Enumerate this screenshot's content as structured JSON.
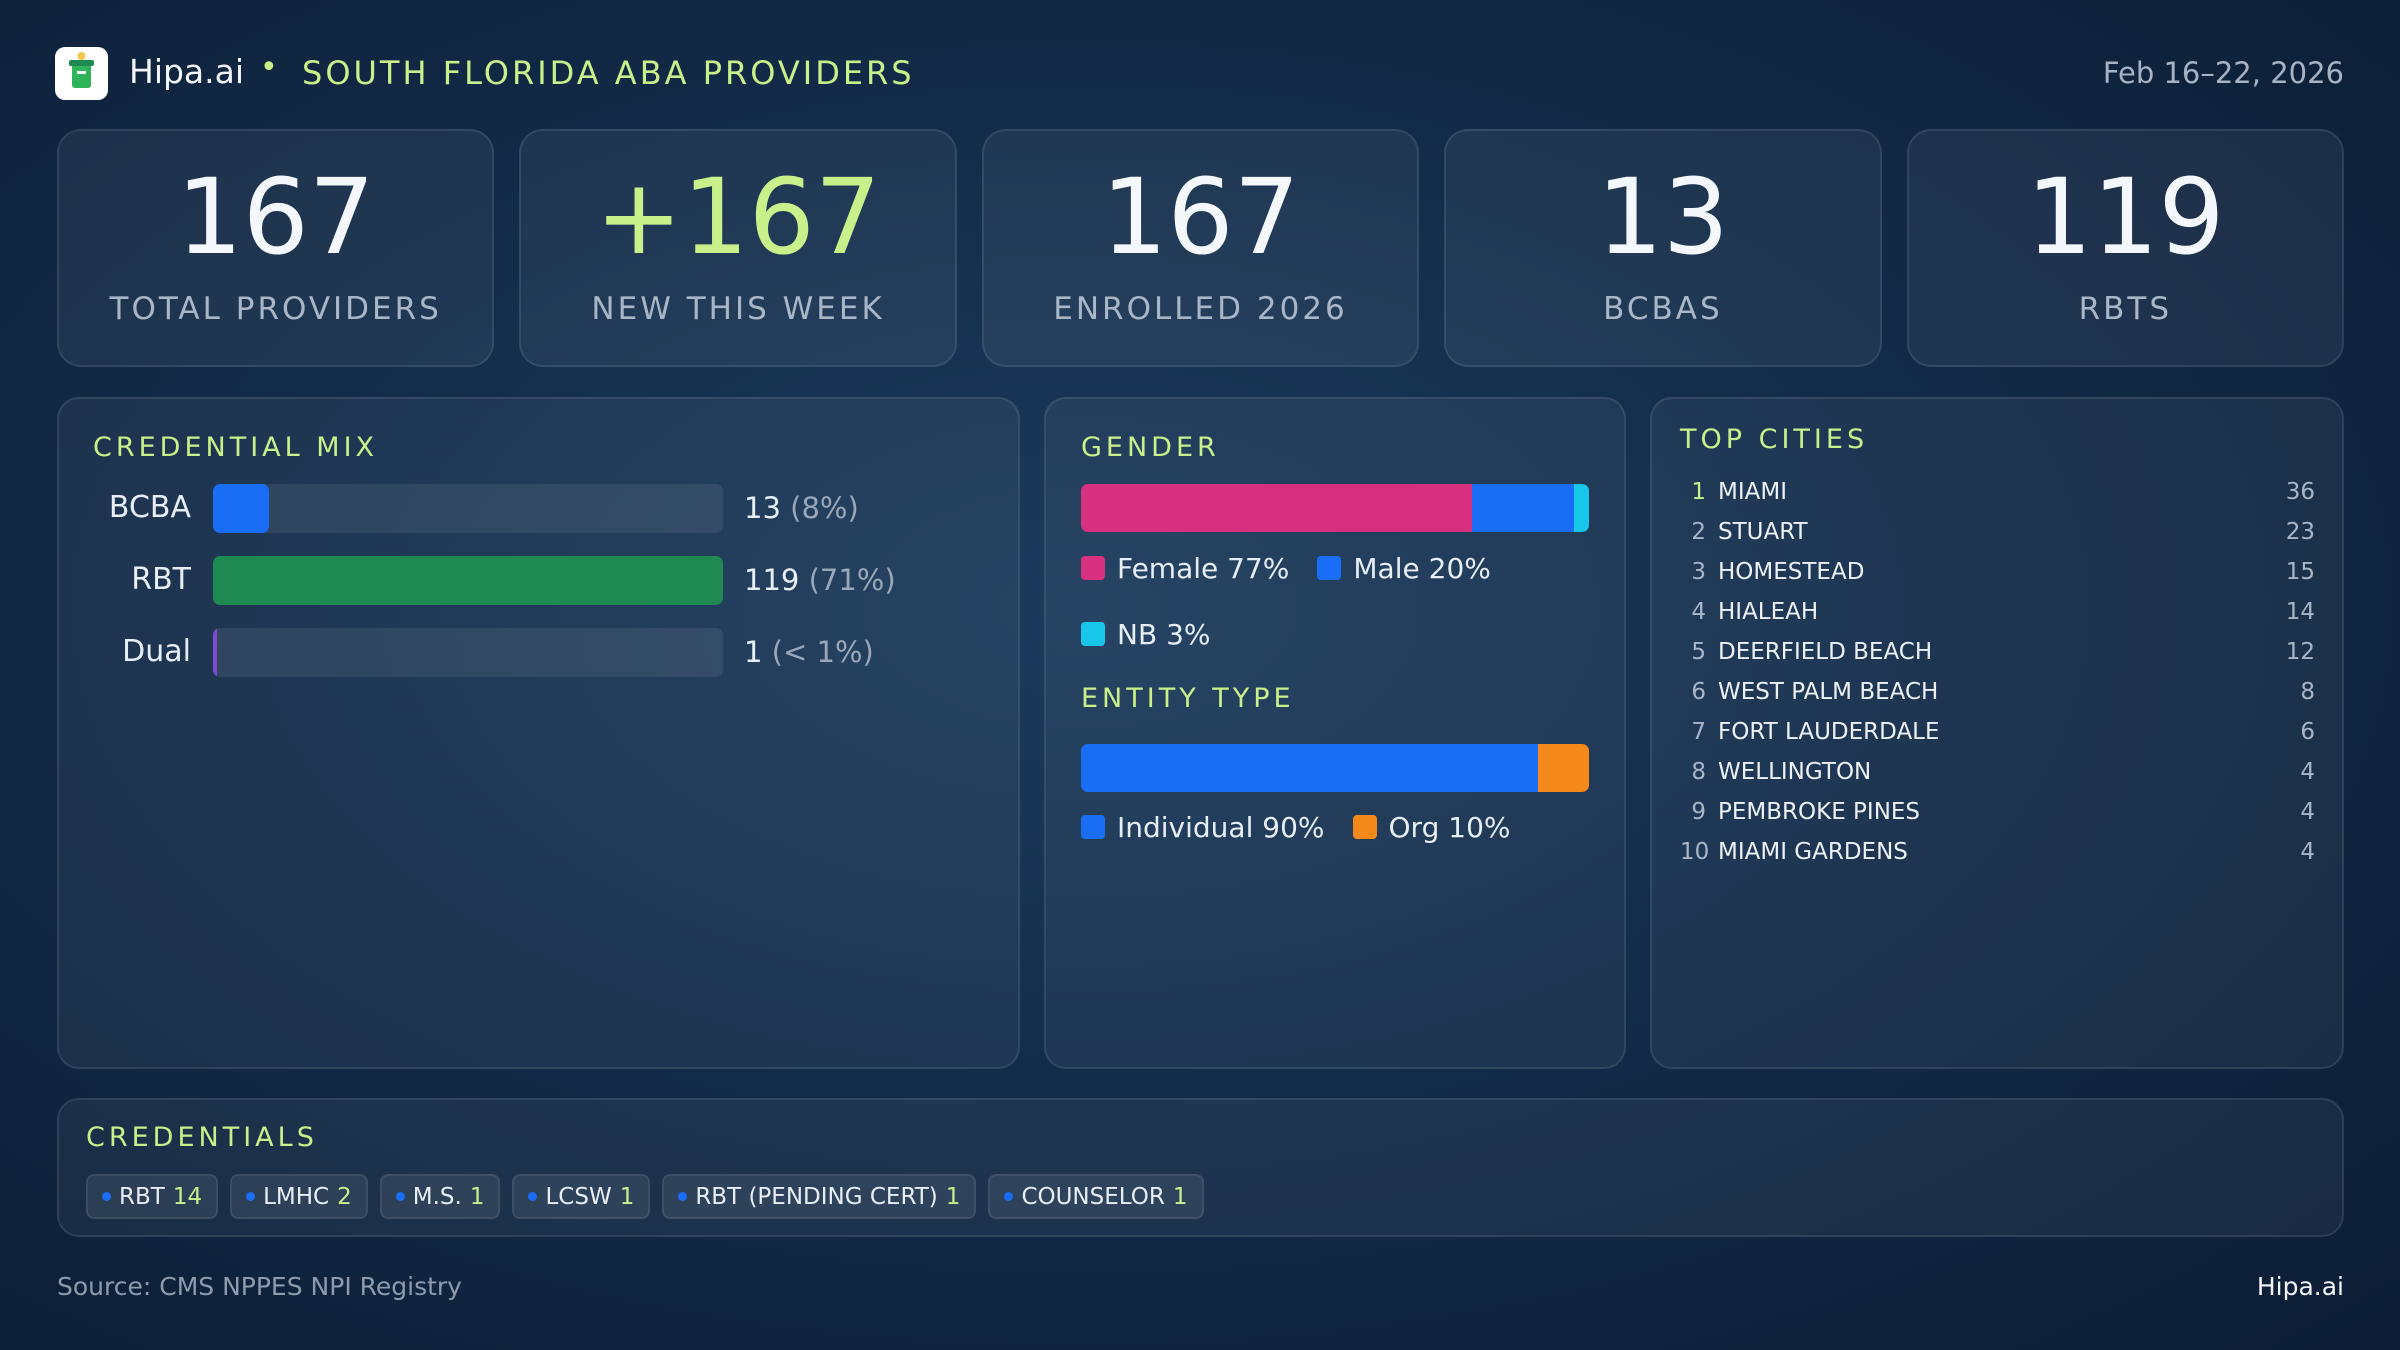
{
  "header": {
    "brand": "Hipa.ai",
    "separator": "•",
    "title": "SOUTH FLORIDA ABA PROVIDERS",
    "date": "Feb 16–22, 2026"
  },
  "kpis": [
    {
      "value": "167",
      "label": "TOTAL PROVIDERS"
    },
    {
      "value": "+167",
      "label": "NEW THIS WEEK",
      "accent": true
    },
    {
      "value": "167",
      "label": "ENROLLED 2026"
    },
    {
      "value": "13",
      "label": "BCBAS"
    },
    {
      "value": "119",
      "label": "RBTS"
    }
  ],
  "credential_mix": {
    "title": "CREDENTIAL MIX",
    "rows": [
      {
        "label": "BCBA",
        "value": 13,
        "share": "(8%)",
        "color": "#1a6ef5"
      },
      {
        "label": "RBT",
        "value": 119,
        "share": "(71%)",
        "color": "#1e8a52"
      },
      {
        "label": "Dual",
        "value": 1,
        "share": "(< 1%)",
        "color": "#7b4bd8"
      }
    ]
  },
  "gender": {
    "title": "GENDER",
    "segments": [
      {
        "name": "Female",
        "value": 77,
        "value_label": "77%",
        "color": "#d6307f"
      },
      {
        "name": "Male",
        "value": 20,
        "value_label": "20%",
        "color": "#1a6ef5"
      },
      {
        "name": "NB",
        "value": 3,
        "value_label": "3%",
        "color": "#17c6e8"
      }
    ]
  },
  "entity_type": {
    "title": "ENTITY TYPE",
    "segments": [
      {
        "name": "Individual",
        "value": 90,
        "value_label": "90%",
        "color": "#1a6ef5"
      },
      {
        "name": "Org",
        "value": 10,
        "value_label": "10%",
        "color": "#f58a1a"
      }
    ]
  },
  "top_cities": {
    "title": "TOP CITIES",
    "rows": [
      {
        "rank": 1,
        "city": "MIAMI",
        "count": 36
      },
      {
        "rank": 2,
        "city": "STUART",
        "count": 23
      },
      {
        "rank": 3,
        "city": "HOMESTEAD",
        "count": 15
      },
      {
        "rank": 4,
        "city": "HIALEAH",
        "count": 14
      },
      {
        "rank": 5,
        "city": "DEERFIELD BEACH",
        "count": 12
      },
      {
        "rank": 6,
        "city": "WEST PALM BEACH",
        "count": 8
      },
      {
        "rank": 7,
        "city": "FORT LAUDERDALE",
        "count": 6
      },
      {
        "rank": 8,
        "city": "WELLINGTON",
        "count": 4
      },
      {
        "rank": 9,
        "city": "PEMBROKE PINES",
        "count": 4
      },
      {
        "rank": 10,
        "city": "MIAMI GARDENS",
        "count": 4
      }
    ]
  },
  "credentials": {
    "title": "CREDENTIALS",
    "chips": [
      {
        "name": "RBT",
        "count": 14
      },
      {
        "name": "LMHC",
        "count": 2
      },
      {
        "name": "M.S.",
        "count": 1
      },
      {
        "name": "LCSW",
        "count": 1
      },
      {
        "name": "RBT (PENDING CERT)",
        "count": 1
      },
      {
        "name": "COUNSELOR",
        "count": 1
      }
    ]
  },
  "footer": {
    "source": "Source: CMS NPPES NPI Registry",
    "brand": "Hipa.ai"
  }
}
